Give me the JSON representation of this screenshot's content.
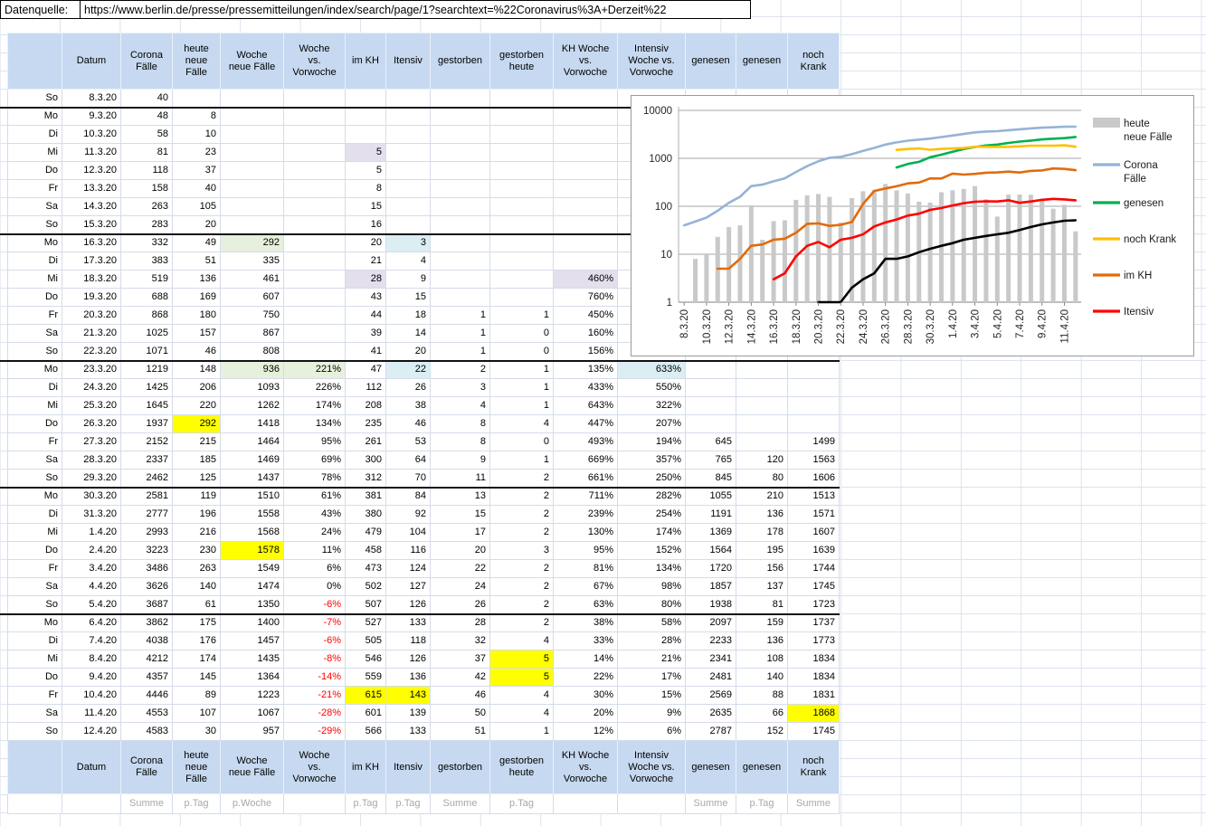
{
  "source": {
    "label": "Datenquelle:",
    "url": "https://www.berlin.de/presse/pressemitteilungen/index/search/page/1?searchtext=%22Coronavirus%3A+Derzeit%22"
  },
  "table": {
    "headers": [
      "",
      "Datum",
      "Corona\nFälle",
      "heute\nneue\nFälle",
      "Woche\nneue Fälle",
      "Woche\nvs.\nVorwoche",
      "im KH",
      "Itensiv",
      "gestorben",
      "gestorben\nheute",
      "KH Woche\nvs.\nVorwoche",
      "Intensiv\nWoche vs.\nVorwoche",
      "genesen",
      "genesen",
      "noch\nKrank"
    ],
    "footer_labels": [
      "",
      "",
      "Summe",
      "p.Tag",
      "p.Woche",
      "",
      "p.Tag",
      "p.Tag",
      "Summe",
      "p.Tag",
      "",
      "",
      "Summe",
      "p.Tag",
      "Summe"
    ],
    "rows": [
      {
        "d": "So",
        "t": "8.3.20",
        "v": [
          "40",
          "",
          "",
          "",
          "",
          "",
          "",
          "",
          "",
          "",
          "",
          "",
          ""
        ]
      },
      {
        "d": "Mo",
        "t": "9.3.20",
        "ws": 1,
        "v": [
          "48",
          "8",
          "",
          "",
          "",
          "",
          "",
          "",
          "",
          "",
          "",
          "",
          ""
        ]
      },
      {
        "d": "Di",
        "t": "10.3.20",
        "v": [
          "58",
          "10",
          "",
          "",
          "",
          "",
          "",
          "",
          "",
          "",
          "",
          "",
          ""
        ]
      },
      {
        "d": "Mi",
        "t": "11.3.20",
        "v": [
          "81",
          "23",
          "",
          "",
          "5",
          "",
          "",
          "",
          "",
          "",
          "",
          "",
          ""
        ],
        "hl": {
          "4": "p"
        }
      },
      {
        "d": "Do",
        "t": "12.3.20",
        "v": [
          "118",
          "37",
          "",
          "",
          "5",
          "",
          "",
          "",
          "",
          "",
          "",
          "",
          ""
        ]
      },
      {
        "d": "Fr",
        "t": "13.3.20",
        "v": [
          "158",
          "40",
          "",
          "",
          "8",
          "",
          "",
          "",
          "",
          "",
          "",
          "",
          ""
        ]
      },
      {
        "d": "Sa",
        "t": "14.3.20",
        "v": [
          "263",
          "105",
          "",
          "",
          "15",
          "",
          "",
          "",
          "",
          "",
          "",
          "",
          ""
        ]
      },
      {
        "d": "So",
        "t": "15.3.20",
        "v": [
          "283",
          "20",
          "",
          "",
          "16",
          "",
          "",
          "",
          "",
          "",
          "",
          "",
          ""
        ]
      },
      {
        "d": "Mo",
        "t": "16.3.20",
        "ws": 1,
        "v": [
          "332",
          "49",
          "292",
          "",
          "20",
          "3",
          "",
          "",
          "",
          "",
          "",
          "",
          ""
        ],
        "hl": {
          "2": "g",
          "5": "b"
        }
      },
      {
        "d": "Di",
        "t": "17.3.20",
        "v": [
          "383",
          "51",
          "335",
          "",
          "21",
          "4",
          "",
          "",
          "",
          "",
          "",
          "",
          ""
        ]
      },
      {
        "d": "Mi",
        "t": "18.3.20",
        "v": [
          "519",
          "136",
          "461",
          "",
          "28",
          "9",
          "",
          "",
          "460%",
          "",
          "",
          "",
          ""
        ],
        "hl": {
          "4": "p",
          "8": "p"
        }
      },
      {
        "d": "Do",
        "t": "19.3.20",
        "v": [
          "688",
          "169",
          "607",
          "",
          "43",
          "15",
          "",
          "",
          "760%",
          "",
          "",
          "",
          ""
        ]
      },
      {
        "d": "Fr",
        "t": "20.3.20",
        "v": [
          "868",
          "180",
          "750",
          "",
          "44",
          "18",
          "1",
          "1",
          "450%",
          "",
          "",
          "",
          ""
        ]
      },
      {
        "d": "Sa",
        "t": "21.3.20",
        "v": [
          "1025",
          "157",
          "867",
          "",
          "39",
          "14",
          "1",
          "0",
          "160%",
          "",
          "",
          "",
          ""
        ]
      },
      {
        "d": "So",
        "t": "22.3.20",
        "v": [
          "1071",
          "46",
          "808",
          "",
          "41",
          "20",
          "1",
          "0",
          "156%",
          "",
          "",
          "",
          ""
        ]
      },
      {
        "d": "Mo",
        "t": "23.3.20",
        "ws": 1,
        "v": [
          "1219",
          "148",
          "936",
          "221%",
          "47",
          "22",
          "2",
          "1",
          "135%",
          "633%",
          "",
          "",
          ""
        ],
        "hl": {
          "2": "g",
          "3": "g",
          "5": "b",
          "9": "b"
        }
      },
      {
        "d": "Di",
        "t": "24.3.20",
        "v": [
          "1425",
          "206",
          "1093",
          "226%",
          "112",
          "26",
          "3",
          "1",
          "433%",
          "550%",
          "",
          "",
          ""
        ]
      },
      {
        "d": "Mi",
        "t": "25.3.20",
        "v": [
          "1645",
          "220",
          "1262",
          "174%",
          "208",
          "38",
          "4",
          "1",
          "643%",
          "322%",
          "",
          "",
          ""
        ]
      },
      {
        "d": "Do",
        "t": "26.3.20",
        "v": [
          "1937",
          "292",
          "1418",
          "134%",
          "235",
          "46",
          "8",
          "4",
          "447%",
          "207%",
          "",
          "",
          ""
        ],
        "hl": {
          "1": "y"
        }
      },
      {
        "d": "Fr",
        "t": "27.3.20",
        "v": [
          "2152",
          "215",
          "1464",
          "95%",
          "261",
          "53",
          "8",
          "0",
          "493%",
          "194%",
          "645",
          "",
          "1499"
        ]
      },
      {
        "d": "Sa",
        "t": "28.3.20",
        "v": [
          "2337",
          "185",
          "1469",
          "69%",
          "300",
          "64",
          "9",
          "1",
          "669%",
          "357%",
          "765",
          "120",
          "1563"
        ]
      },
      {
        "d": "So",
        "t": "29.3.20",
        "v": [
          "2462",
          "125",
          "1437",
          "78%",
          "312",
          "70",
          "11",
          "2",
          "661%",
          "250%",
          "845",
          "80",
          "1606"
        ]
      },
      {
        "d": "Mo",
        "t": "30.3.20",
        "ws": 1,
        "v": [
          "2581",
          "119",
          "1510",
          "61%",
          "381",
          "84",
          "13",
          "2",
          "711%",
          "282%",
          "1055",
          "210",
          "1513"
        ]
      },
      {
        "d": "Di",
        "t": "31.3.20",
        "v": [
          "2777",
          "196",
          "1558",
          "43%",
          "380",
          "92",
          "15",
          "2",
          "239%",
          "254%",
          "1191",
          "136",
          "1571"
        ]
      },
      {
        "d": "Mi",
        "t": "1.4.20",
        "v": [
          "2993",
          "216",
          "1568",
          "24%",
          "479",
          "104",
          "17",
          "2",
          "130%",
          "174%",
          "1369",
          "178",
          "1607"
        ]
      },
      {
        "d": "Do",
        "t": "2.4.20",
        "v": [
          "3223",
          "230",
          "1578",
          "11%",
          "458",
          "116",
          "20",
          "3",
          "95%",
          "152%",
          "1564",
          "195",
          "1639"
        ],
        "hl": {
          "2": "y"
        }
      },
      {
        "d": "Fr",
        "t": "3.4.20",
        "v": [
          "3486",
          "263",
          "1549",
          "6%",
          "473",
          "124",
          "22",
          "2",
          "81%",
          "134%",
          "1720",
          "156",
          "1744"
        ]
      },
      {
        "d": "Sa",
        "t": "4.4.20",
        "v": [
          "3626",
          "140",
          "1474",
          "0%",
          "502",
          "127",
          "24",
          "2",
          "67%",
          "98%",
          "1857",
          "137",
          "1745"
        ]
      },
      {
        "d": "So",
        "t": "5.4.20",
        "v": [
          "3687",
          "61",
          "1350",
          "-6%",
          "507",
          "126",
          "26",
          "2",
          "63%",
          "80%",
          "1938",
          "81",
          "1723"
        ]
      },
      {
        "d": "Mo",
        "t": "6.4.20",
        "ws": 1,
        "v": [
          "3862",
          "175",
          "1400",
          "-7%",
          "527",
          "133",
          "28",
          "2",
          "38%",
          "58%",
          "2097",
          "159",
          "1737"
        ]
      },
      {
        "d": "Di",
        "t": "7.4.20",
        "v": [
          "4038",
          "176",
          "1457",
          "-6%",
          "505",
          "118",
          "32",
          "4",
          "33%",
          "28%",
          "2233",
          "136",
          "1773"
        ]
      },
      {
        "d": "Mi",
        "t": "8.4.20",
        "v": [
          "4212",
          "174",
          "1435",
          "-8%",
          "546",
          "126",
          "37",
          "5",
          "14%",
          "21%",
          "2341",
          "108",
          "1834"
        ],
        "hl": {
          "7": "y"
        }
      },
      {
        "d": "Do",
        "t": "9.4.20",
        "v": [
          "4357",
          "145",
          "1364",
          "-14%",
          "559",
          "136",
          "42",
          "5",
          "22%",
          "17%",
          "2481",
          "140",
          "1834"
        ],
        "hl": {
          "7": "y"
        }
      },
      {
        "d": "Fr",
        "t": "10.4.20",
        "v": [
          "4446",
          "89",
          "1223",
          "-21%",
          "615",
          "143",
          "46",
          "4",
          "30%",
          "15%",
          "2569",
          "88",
          "1831"
        ],
        "hl": {
          "4": "y",
          "5": "y"
        }
      },
      {
        "d": "Sa",
        "t": "11.4.20",
        "v": [
          "4553",
          "107",
          "1067",
          "-28%",
          "601",
          "139",
          "50",
          "4",
          "20%",
          "9%",
          "2635",
          "66",
          "1868"
        ],
        "hl": {
          "12": "y"
        }
      },
      {
        "d": "So",
        "t": "12.4.20",
        "v": [
          "4583",
          "30",
          "957",
          "-29%",
          "566",
          "133",
          "51",
          "1",
          "12%",
          "6%",
          "2787",
          "152",
          "1745"
        ]
      }
    ]
  },
  "chart_data": {
    "type": "bar+line combo, logarithmic y-axis",
    "x_dates": [
      "8.3.20",
      "9.3.20",
      "10.3.20",
      "11.3.20",
      "12.3.20",
      "13.3.20",
      "14.3.20",
      "15.3.20",
      "16.3.20",
      "17.3.20",
      "18.3.20",
      "19.3.20",
      "20.3.20",
      "21.3.20",
      "22.3.20",
      "23.3.20",
      "24.3.20",
      "25.3.20",
      "26.3.20",
      "27.3.20",
      "28.3.20",
      "29.3.20",
      "30.3.20",
      "31.3.20",
      "1.4.20",
      "2.4.20",
      "3.4.20",
      "4.4.20",
      "5.4.20",
      "6.4.20",
      "7.4.20",
      "8.4.20",
      "9.4.20",
      "10.4.20",
      "11.4.20",
      "12.4.20"
    ],
    "tick_every": 2,
    "ylog_ticks": [
      1,
      10,
      100,
      1000,
      10000
    ],
    "ylim": [
      1,
      10000
    ],
    "grid": "horizontal only",
    "legend_position": "right",
    "series": [
      {
        "name": "heute neue Fälle",
        "type": "bar",
        "color": "#c9c9c9",
        "start": 1,
        "values": [
          8,
          10,
          23,
          37,
          40,
          105,
          20,
          49,
          51,
          136,
          169,
          180,
          157,
          46,
          148,
          206,
          220,
          292,
          215,
          185,
          125,
          119,
          196,
          216,
          230,
          263,
          140,
          61,
          175,
          176,
          174,
          145,
          89,
          107,
          30
        ]
      },
      {
        "name": "Corona Fälle",
        "type": "line",
        "color": "#95b3d7",
        "start": 0,
        "values": [
          40,
          48,
          58,
          81,
          118,
          158,
          263,
          283,
          332,
          383,
          519,
          688,
          868,
          1025,
          1071,
          1219,
          1425,
          1645,
          1937,
          2152,
          2337,
          2462,
          2581,
          2777,
          2993,
          3223,
          3486,
          3626,
          3687,
          3862,
          4038,
          4212,
          4357,
          4446,
          4553,
          4583
        ]
      },
      {
        "name": "genesen",
        "type": "line",
        "color": "#00b050",
        "start": 19,
        "values": [
          645,
          765,
          845,
          1055,
          1191,
          1369,
          1564,
          1720,
          1857,
          1938,
          2097,
          2233,
          2341,
          2481,
          2569,
          2635,
          2787
        ]
      },
      {
        "name": "noch Krank",
        "type": "line",
        "color": "#ffc000",
        "start": 19,
        "values": [
          1499,
          1563,
          1606,
          1513,
          1571,
          1607,
          1639,
          1744,
          1745,
          1723,
          1737,
          1773,
          1834,
          1834,
          1831,
          1868,
          1745
        ]
      },
      {
        "name": "im KH",
        "type": "line",
        "color": "#e26b0a",
        "start": 3,
        "values": [
          5,
          5,
          8,
          15,
          16,
          20,
          21,
          28,
          43,
          44,
          39,
          41,
          47,
          112,
          208,
          235,
          261,
          300,
          312,
          381,
          380,
          479,
          458,
          473,
          502,
          507,
          527,
          505,
          546,
          559,
          615,
          601,
          566
        ]
      },
      {
        "name": "Itensiv",
        "type": "line",
        "color": "#ff0000",
        "start": 8,
        "values": [
          3,
          4,
          9,
          15,
          18,
          14,
          20,
          22,
          26,
          38,
          46,
          53,
          64,
          70,
          84,
          92,
          104,
          116,
          124,
          127,
          126,
          133,
          118,
          126,
          136,
          143,
          139,
          133
        ]
      },
      {
        "name": "gestorben",
        "type": "line",
        "color": "#000000",
        "start": 12,
        "in_legend": false,
        "values": [
          1,
          1,
          1,
          2,
          3,
          4,
          8,
          8,
          9,
          11,
          13,
          15,
          17,
          20,
          22,
          24,
          26,
          28,
          32,
          37,
          42,
          46,
          50,
          51
        ]
      }
    ],
    "legend": [
      {
        "label": "heute\nneue Fälle",
        "color": "#c9c9c9",
        "swatch": "bar"
      },
      {
        "label": "Corona\nFälle",
        "color": "#95b3d7",
        "swatch": "line"
      },
      {
        "label": "genesen",
        "color": "#00b050",
        "swatch": "line"
      },
      {
        "label": "noch Krank",
        "color": "#ffc000",
        "swatch": "line"
      },
      {
        "label": "im KH",
        "color": "#e26b0a",
        "swatch": "line"
      },
      {
        "label": "Itensiv",
        "color": "#ff0000",
        "swatch": "line"
      }
    ]
  }
}
